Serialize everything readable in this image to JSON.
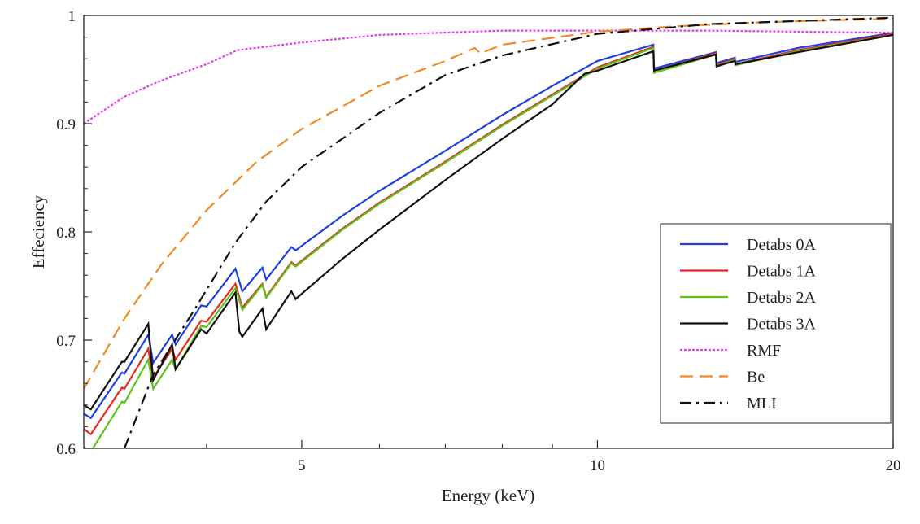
{
  "chart_data": {
    "type": "line",
    "title": "",
    "xlabel": "Energy (keV)",
    "ylabel": "Effeciency",
    "xscale": "log",
    "xlim": [
      3,
      20
    ],
    "ylim": [
      0.6,
      1.0
    ],
    "xticks": [
      5,
      10,
      20
    ],
    "xtick_labels": [
      "5",
      "10",
      "20"
    ],
    "yticks": [
      0.6,
      0.7,
      0.8,
      0.9,
      1.0
    ],
    "ytick_labels": [
      "0.6",
      "0.7",
      "0.8",
      "0.9",
      "1"
    ],
    "grid": false,
    "legend_position": "bottom-right",
    "series": [
      {
        "name": "Detabs 0A",
        "color": "#1f3fe0",
        "style": "solid",
        "points": [
          [
            3,
            0.632
          ],
          [
            3.05,
            0.628
          ],
          [
            3.28,
            0.67
          ],
          [
            3.3,
            0.669
          ],
          [
            3.49,
            0.705
          ],
          [
            3.53,
            0.679
          ],
          [
            3.69,
            0.705
          ],
          [
            3.72,
            0.696
          ],
          [
            3.95,
            0.732
          ],
          [
            4.0,
            0.731
          ],
          [
            4.28,
            0.766
          ],
          [
            4.35,
            0.745
          ],
          [
            4.56,
            0.767
          ],
          [
            4.6,
            0.756
          ],
          [
            4.88,
            0.786
          ],
          [
            4.93,
            0.783
          ],
          [
            5.5,
            0.815
          ],
          [
            6,
            0.838
          ],
          [
            7,
            0.875
          ],
          [
            8,
            0.908
          ],
          [
            9,
            0.935
          ],
          [
            10,
            0.958
          ],
          [
            11.4,
            0.973
          ],
          [
            11.42,
            0.951
          ],
          [
            13.2,
            0.966
          ],
          [
            13.22,
            0.956
          ],
          [
            13.8,
            0.961
          ],
          [
            13.82,
            0.957
          ],
          [
            16,
            0.97
          ],
          [
            20,
            0.984
          ]
        ]
      },
      {
        "name": "Detabs 1A",
        "color": "#e8281e",
        "style": "solid",
        "points": [
          [
            3,
            0.618
          ],
          [
            3.05,
            0.613
          ],
          [
            3.28,
            0.656
          ],
          [
            3.3,
            0.655
          ],
          [
            3.49,
            0.692
          ],
          [
            3.53,
            0.665
          ],
          [
            3.69,
            0.692
          ],
          [
            3.72,
            0.682
          ],
          [
            3.95,
            0.718
          ],
          [
            4.0,
            0.717
          ],
          [
            4.28,
            0.752
          ],
          [
            4.35,
            0.73
          ],
          [
            4.56,
            0.752
          ],
          [
            4.6,
            0.74
          ],
          [
            4.88,
            0.772
          ],
          [
            4.93,
            0.769
          ],
          [
            5.5,
            0.803
          ],
          [
            6,
            0.827
          ],
          [
            7,
            0.865
          ],
          [
            8,
            0.899
          ],
          [
            9,
            0.927
          ],
          [
            10,
            0.952
          ],
          [
            11.4,
            0.971
          ],
          [
            11.42,
            0.949
          ],
          [
            13.2,
            0.965
          ],
          [
            13.22,
            0.954
          ],
          [
            13.8,
            0.96
          ],
          [
            13.82,
            0.955
          ],
          [
            16,
            0.968
          ],
          [
            20,
            0.983
          ]
        ]
      },
      {
        "name": "Detabs 2A",
        "color": "#5cc21c",
        "style": "solid",
        "points": [
          [
            3,
            0.601
          ],
          [
            3.05,
            0.597
          ],
          [
            3.28,
            0.643
          ],
          [
            3.3,
            0.642
          ],
          [
            3.49,
            0.682
          ],
          [
            3.53,
            0.655
          ],
          [
            3.69,
            0.682
          ],
          [
            3.72,
            0.673
          ],
          [
            3.95,
            0.713
          ],
          [
            4.0,
            0.712
          ],
          [
            4.28,
            0.748
          ],
          [
            4.35,
            0.728
          ],
          [
            4.56,
            0.751
          ],
          [
            4.6,
            0.739
          ],
          [
            4.88,
            0.771
          ],
          [
            4.93,
            0.768
          ],
          [
            5.5,
            0.802
          ],
          [
            6,
            0.826
          ],
          [
            7,
            0.864
          ],
          [
            8,
            0.898
          ],
          [
            9,
            0.926
          ],
          [
            10,
            0.951
          ],
          [
            11.4,
            0.97
          ],
          [
            11.42,
            0.947
          ],
          [
            13.2,
            0.964
          ],
          [
            13.22,
            0.953
          ],
          [
            13.8,
            0.959
          ],
          [
            13.82,
            0.954
          ],
          [
            16,
            0.967
          ],
          [
            20,
            0.982
          ]
        ]
      },
      {
        "name": "Detabs 3A",
        "color": "#111111",
        "style": "solid",
        "points": [
          [
            3,
            0.64
          ],
          [
            3.05,
            0.636
          ],
          [
            3.28,
            0.68
          ],
          [
            3.3,
            0.68
          ],
          [
            3.49,
            0.715
          ],
          [
            3.53,
            0.663
          ],
          [
            3.69,
            0.696
          ],
          [
            3.72,
            0.673
          ],
          [
            3.95,
            0.71
          ],
          [
            4.0,
            0.706
          ],
          [
            4.28,
            0.744
          ],
          [
            4.32,
            0.708
          ],
          [
            4.35,
            0.703
          ],
          [
            4.56,
            0.729
          ],
          [
            4.6,
            0.71
          ],
          [
            4.88,
            0.745
          ],
          [
            4.93,
            0.738
          ],
          [
            5.5,
            0.775
          ],
          [
            6,
            0.802
          ],
          [
            7,
            0.848
          ],
          [
            8,
            0.886
          ],
          [
            9,
            0.918
          ],
          [
            9.7,
            0.946
          ],
          [
            10,
            0.949
          ],
          [
            11.4,
            0.967
          ],
          [
            11.42,
            0.949
          ],
          [
            13.2,
            0.964
          ],
          [
            13.22,
            0.953
          ],
          [
            13.8,
            0.958
          ],
          [
            13.82,
            0.955
          ],
          [
            16,
            0.966
          ],
          [
            20,
            0.982
          ]
        ]
      },
      {
        "name": "RMF",
        "color": "#e040e8",
        "style": "dotted",
        "points": [
          [
            3,
            0.9
          ],
          [
            3.3,
            0.925
          ],
          [
            3.6,
            0.94
          ],
          [
            4,
            0.955
          ],
          [
            4.3,
            0.968
          ],
          [
            5,
            0.975
          ],
          [
            6,
            0.982
          ],
          [
            8,
            0.986
          ],
          [
            10,
            0.986
          ],
          [
            13,
            0.986
          ],
          [
            20,
            0.984
          ]
        ]
      },
      {
        "name": "Be",
        "color": "#f08a24",
        "style": "dashed",
        "points": [
          [
            3,
            0.655
          ],
          [
            3.3,
            0.72
          ],
          [
            3.6,
            0.77
          ],
          [
            4,
            0.82
          ],
          [
            4.5,
            0.865
          ],
          [
            5,
            0.895
          ],
          [
            6,
            0.935
          ],
          [
            7,
            0.958
          ],
          [
            7.5,
            0.97
          ],
          [
            7.6,
            0.965
          ],
          [
            8,
            0.973
          ],
          [
            10,
            0.985
          ],
          [
            12,
            0.99
          ],
          [
            15,
            0.994
          ],
          [
            20,
            0.997
          ]
        ]
      },
      {
        "name": "MLI",
        "color": "#111111",
        "style": "dashdot",
        "points": [
          [
            3.3,
            0.6
          ],
          [
            3.53,
            0.668
          ],
          [
            3.9,
            0.73
          ],
          [
            4.28,
            0.79
          ],
          [
            4.6,
            0.828
          ],
          [
            5,
            0.86
          ],
          [
            6,
            0.91
          ],
          [
            7,
            0.945
          ],
          [
            8,
            0.963
          ],
          [
            10,
            0.983
          ],
          [
            13,
            0.992
          ],
          [
            20,
            0.998
          ]
        ]
      }
    ]
  }
}
